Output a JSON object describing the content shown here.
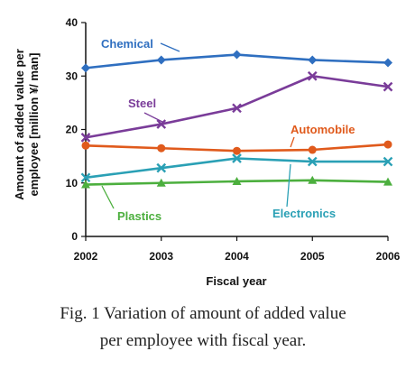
{
  "chart_data": {
    "type": "line",
    "xlabel": "Fiscal year",
    "ylabel_line1": "Amount of added value per",
    "ylabel_line2": "employee [million ¥/ man]",
    "x": [
      "2002",
      "2003",
      "2004",
      "2005",
      "2006"
    ],
    "ylim": [
      0,
      40
    ],
    "yticks": [
      "0",
      "10",
      "20",
      "30",
      "40"
    ],
    "grid": false,
    "legend": "inline labels",
    "series": [
      {
        "name": "Chemical",
        "values": [
          31.5,
          33,
          34,
          33,
          32.5
        ],
        "color": "#2f6fc0",
        "marker": "diamond"
      },
      {
        "name": "Steel",
        "values": [
          18.5,
          21,
          24,
          30,
          28
        ],
        "color": "#7a3c99",
        "marker": "x"
      },
      {
        "name": "Automobile",
        "values": [
          17,
          16.5,
          16,
          16.2,
          17.2
        ],
        "color": "#e05a1c",
        "marker": "circle"
      },
      {
        "name": "Electronics",
        "values": [
          11,
          12.8,
          14.6,
          14,
          14
        ],
        "color": "#2aa0b5",
        "marker": "x"
      },
      {
        "name": "Plastics",
        "values": [
          9.7,
          10,
          10.3,
          10.5,
          10.2
        ],
        "color": "#4caf3e",
        "marker": "triangle"
      }
    ]
  },
  "caption": {
    "line1": "Fig. 1 Variation of amount of added value",
    "line2": "per employee with fiscal year."
  }
}
